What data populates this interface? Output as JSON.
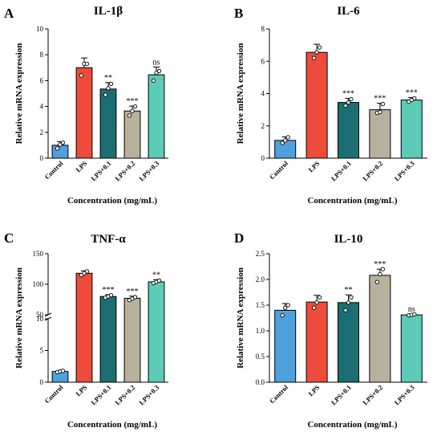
{
  "x_axis_label": "Concentration (mg/mL)",
  "y_axis_label": "Relative mRNA expression",
  "categories": [
    "Control",
    "LPS",
    "LPS+0.1",
    "LPS+0.2",
    "LPS+0.3"
  ],
  "colors": {
    "Control": "#4ea1dd",
    "LPS": "#ef4b3a",
    "LPS+0.1": "#1b6f72",
    "LPS+0.2": "#b8b19e",
    "LPS+0.3": "#5ccbb8",
    "edge": "#000000"
  },
  "chart_data": [
    {
      "panel": "A",
      "type": "bar",
      "title": "IL-1β",
      "categories": [
        "Control",
        "LPS",
        "LPS+0.1",
        "LPS+0.2",
        "LPS+0.3"
      ],
      "values": [
        1.0,
        7.0,
        5.35,
        3.65,
        6.45
      ],
      "errors": [
        0.28,
        0.75,
        0.5,
        0.38,
        0.6
      ],
      "points": [
        [
          0.75,
          1.05,
          1.2
        ],
        [
          6.4,
          7.3,
          7.3
        ],
        [
          4.9,
          5.4,
          5.75
        ],
        [
          3.3,
          3.65,
          4.0
        ],
        [
          6.0,
          6.6,
          6.75
        ]
      ],
      "significance": [
        "",
        "",
        "**",
        "***",
        "ns"
      ],
      "ylim": [
        0,
        10
      ],
      "yticks": [
        0,
        2,
        4,
        6,
        8,
        10
      ],
      "xlabel": "Concentration (mg/mL)",
      "ylabel": "Relative mRNA expression"
    },
    {
      "panel": "B",
      "type": "bar",
      "title": "IL-6",
      "categories": [
        "Control",
        "LPS",
        "LPS+0.1",
        "LPS+0.2",
        "LPS+0.3"
      ],
      "values": [
        1.1,
        6.55,
        3.45,
        3.0,
        3.6
      ],
      "errors": [
        0.22,
        0.5,
        0.25,
        0.4,
        0.15
      ],
      "points": [
        [
          0.95,
          1.1,
          1.3
        ],
        [
          6.2,
          6.55,
          6.85
        ],
        [
          3.25,
          3.45,
          3.65
        ],
        [
          2.8,
          2.85,
          3.35
        ],
        [
          3.5,
          3.6,
          3.7
        ]
      ],
      "significance": [
        "",
        "",
        "***",
        "***",
        "***"
      ],
      "ylim": [
        0,
        8
      ],
      "yticks": [
        0,
        2,
        4,
        6,
        8
      ],
      "xlabel": "Concentration (mg/mL)",
      "ylabel": "Relative mRNA expression"
    },
    {
      "panel": "C",
      "type": "bar",
      "title": "TNF-α",
      "categories": [
        "Control",
        "LPS",
        "LPS+0.1",
        "LPS+0.2",
        "LPS+0.3"
      ],
      "values": [
        1.7,
        118,
        80,
        77,
        104
      ],
      "errors": [
        0.15,
        4,
        3,
        3.5,
        3.5
      ],
      "points": [
        [
          1.6,
          1.7,
          1.8
        ],
        [
          115,
          118,
          121
        ],
        [
          78,
          80,
          82
        ],
        [
          74,
          76.5,
          79
        ],
        [
          102,
          104,
          106
        ]
      ],
      "significance": [
        "",
        "",
        "***",
        "***",
        "**"
      ],
      "axis_break": {
        "lower_range": [
          0,
          10
        ],
        "upper_range": [
          50,
          150
        ]
      },
      "yticks": [
        0,
        5,
        10,
        50,
        100,
        150
      ],
      "xlabel": "Concentration (mg/mL)",
      "ylabel": "Relative mRNA expression"
    },
    {
      "panel": "D",
      "type": "bar",
      "title": "IL-10",
      "categories": [
        "Control",
        "LPS",
        "LPS+0.1",
        "LPS+0.2",
        "LPS+0.3"
      ],
      "values": [
        1.4,
        1.56,
        1.55,
        2.08,
        1.31
      ],
      "errors": [
        0.13,
        0.13,
        0.15,
        0.12,
        0.02
      ],
      "points": [
        [
          1.3,
          1.45,
          1.5
        ],
        [
          1.45,
          1.55,
          1.65
        ],
        [
          1.4,
          1.55,
          1.65
        ],
        [
          1.95,
          2.1,
          2.2
        ],
        [
          1.3,
          1.31,
          1.32
        ]
      ],
      "significance": [
        "",
        "",
        "**",
        "***",
        "ns"
      ],
      "ylim": [
        0,
        2.5
      ],
      "yticks": [
        0.0,
        0.5,
        1.0,
        1.5,
        2.0,
        2.5
      ],
      "xlabel": "Concentration (mg/mL)",
      "ylabel": "Relative mRNA expression"
    }
  ]
}
